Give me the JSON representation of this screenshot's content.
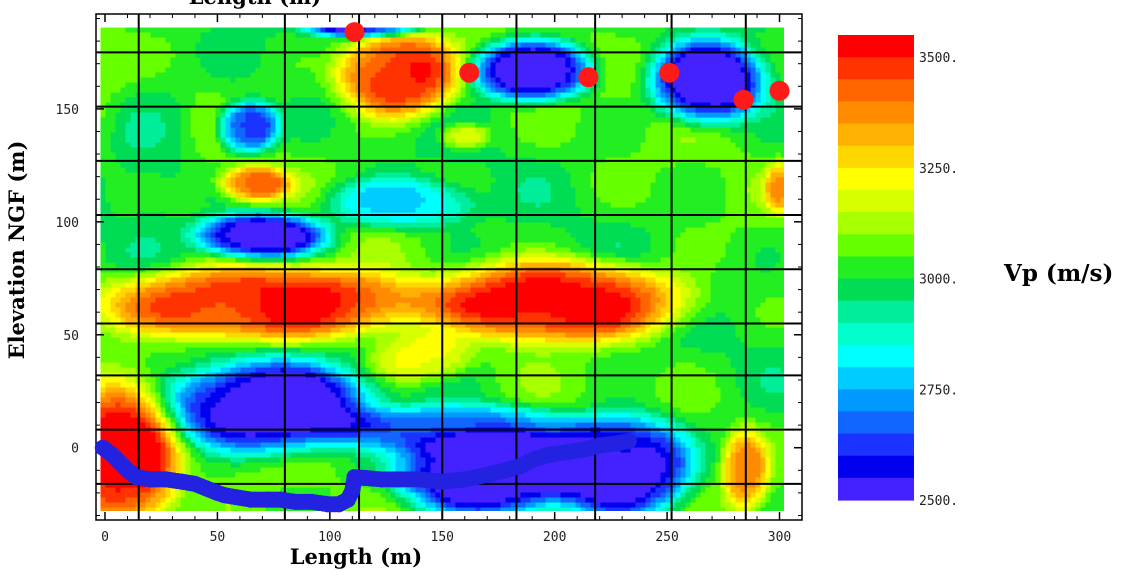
{
  "chart_data": {
    "type": "heatmap",
    "title": "",
    "top_axis_label": "Length (m)",
    "xlabel": "Length (m)",
    "ylabel": "Elevation NGF (m)",
    "xlim": [
      -4,
      310
    ],
    "ylim": [
      -32,
      192
    ],
    "x_ticks": [
      0,
      50,
      100,
      150,
      200,
      250,
      300
    ],
    "y_ticks": [
      0,
      50,
      100,
      150
    ],
    "grid": true,
    "grid_x": [
      15,
      80,
      113,
      150,
      183,
      218,
      252,
      285
    ],
    "grid_y": [
      -16,
      8,
      32,
      55,
      79,
      103,
      127,
      151,
      175
    ],
    "data_extent": {
      "x": [
        -2,
        302
      ],
      "y": [
        -28,
        186
      ]
    },
    "colorbar": {
      "title": "Vp (m/s)",
      "min": 2500,
      "max": 3550,
      "tick_labels": [
        "3500.",
        "3250.",
        "3000.",
        "2750.",
        "2500."
      ],
      "tick_values": [
        3500,
        3250,
        3000,
        2750,
        2500
      ],
      "colors": [
        "#ff0000",
        "#ff3300",
        "#ff6600",
        "#ff8c00",
        "#ffb000",
        "#ffd700",
        "#ffff00",
        "#d8ff00",
        "#a8ff00",
        "#66ff00",
        "#22ee22",
        "#00dd55",
        "#00ee99",
        "#00ffcc",
        "#00ffff",
        "#00ccff",
        "#0099ff",
        "#1166ff",
        "#1a33ff",
        "#0000ee",
        "#4422ff"
      ]
    },
    "background_value": 3030,
    "anomalies": [
      {
        "x": 130,
        "y": 165,
        "rx": 24,
        "ry": 17,
        "value": 3560
      },
      {
        "x": 70,
        "y": 64,
        "rx": 62,
        "ry": 15,
        "value": 3560
      },
      {
        "x": 203,
        "y": 65,
        "rx": 50,
        "ry": 16,
        "value": 3560
      },
      {
        "x": 8,
        "y": -5,
        "rx": 22,
        "ry": 30,
        "value": 3580
      },
      {
        "x": 67,
        "y": 117,
        "rx": 14,
        "ry": 7,
        "value": 3420
      },
      {
        "x": 160,
        "y": 138,
        "rx": 10,
        "ry": 5,
        "value": 3260
      },
      {
        "x": 300,
        "y": 115,
        "rx": 6,
        "ry": 10,
        "value": 3300
      },
      {
        "x": 285,
        "y": -10,
        "rx": 9,
        "ry": 16,
        "value": 3360
      },
      {
        "x": 140,
        "y": 40,
        "rx": 20,
        "ry": 10,
        "value": 3220
      },
      {
        "x": 190,
        "y": 167,
        "rx": 24,
        "ry": 12,
        "value": 2430
      },
      {
        "x": 268,
        "y": 162,
        "rx": 22,
        "ry": 16,
        "value": 2430
      },
      {
        "x": 64,
        "y": 142,
        "rx": 12,
        "ry": 10,
        "value": 2560
      },
      {
        "x": 70,
        "y": 94,
        "rx": 26,
        "ry": 9,
        "value": 2450
      },
      {
        "x": 72,
        "y": 18,
        "rx": 40,
        "ry": 18,
        "value": 2430
      },
      {
        "x": 170,
        "y": -12,
        "rx": 35,
        "ry": 16,
        "value": 2450
      },
      {
        "x": 230,
        "y": -8,
        "rx": 28,
        "ry": 20,
        "value": 2440
      },
      {
        "x": 115,
        "y": 186,
        "rx": 22,
        "ry": 4,
        "value": 2500
      },
      {
        "x": 22,
        "y": 138,
        "rx": 16,
        "ry": 30,
        "value": 2950
      },
      {
        "x": 160,
        "y": 8,
        "rx": 50,
        "ry": 10,
        "value": 2700
      },
      {
        "x": 130,
        "y": 108,
        "rx": 30,
        "ry": 10,
        "value": 2780
      }
    ],
    "sources": [
      {
        "x": 111,
        "y": 184
      },
      {
        "x": 162,
        "y": 166
      },
      {
        "x": 215,
        "y": 164
      },
      {
        "x": 251,
        "y": 166
      },
      {
        "x": 284,
        "y": 154
      },
      {
        "x": 300,
        "y": 158
      }
    ],
    "receivers_start": [
      -1,
      0
    ],
    "receivers_path": [
      [
        -1,
        0
      ],
      [
        3,
        -3
      ],
      [
        6,
        -6
      ],
      [
        10,
        -10
      ],
      [
        14,
        -13
      ],
      [
        20,
        -14
      ],
      [
        27,
        -14
      ],
      [
        34,
        -15
      ],
      [
        40,
        -16
      ],
      [
        45,
        -18
      ],
      [
        50,
        -20
      ],
      [
        53,
        -21
      ],
      [
        65,
        -23
      ],
      [
        72,
        -23
      ],
      [
        78,
        -23
      ],
      [
        85,
        -24
      ],
      [
        92,
        -24
      ],
      [
        99,
        -25
      ],
      [
        104,
        -25
      ],
      [
        108,
        -23
      ],
      [
        110,
        -19
      ],
      [
        111,
        -13
      ],
      [
        123,
        -14
      ],
      [
        130,
        -14
      ],
      [
        140,
        -14
      ],
      [
        150,
        -15
      ],
      [
        160,
        -14
      ],
      [
        170,
        -12
      ],
      [
        178,
        -10
      ],
      [
        185,
        -8
      ],
      [
        191,
        -5
      ],
      [
        198,
        -3
      ],
      [
        205,
        -2
      ],
      [
        212,
        -1
      ],
      [
        220,
        1
      ],
      [
        228,
        2
      ],
      [
        233,
        3
      ]
    ]
  }
}
